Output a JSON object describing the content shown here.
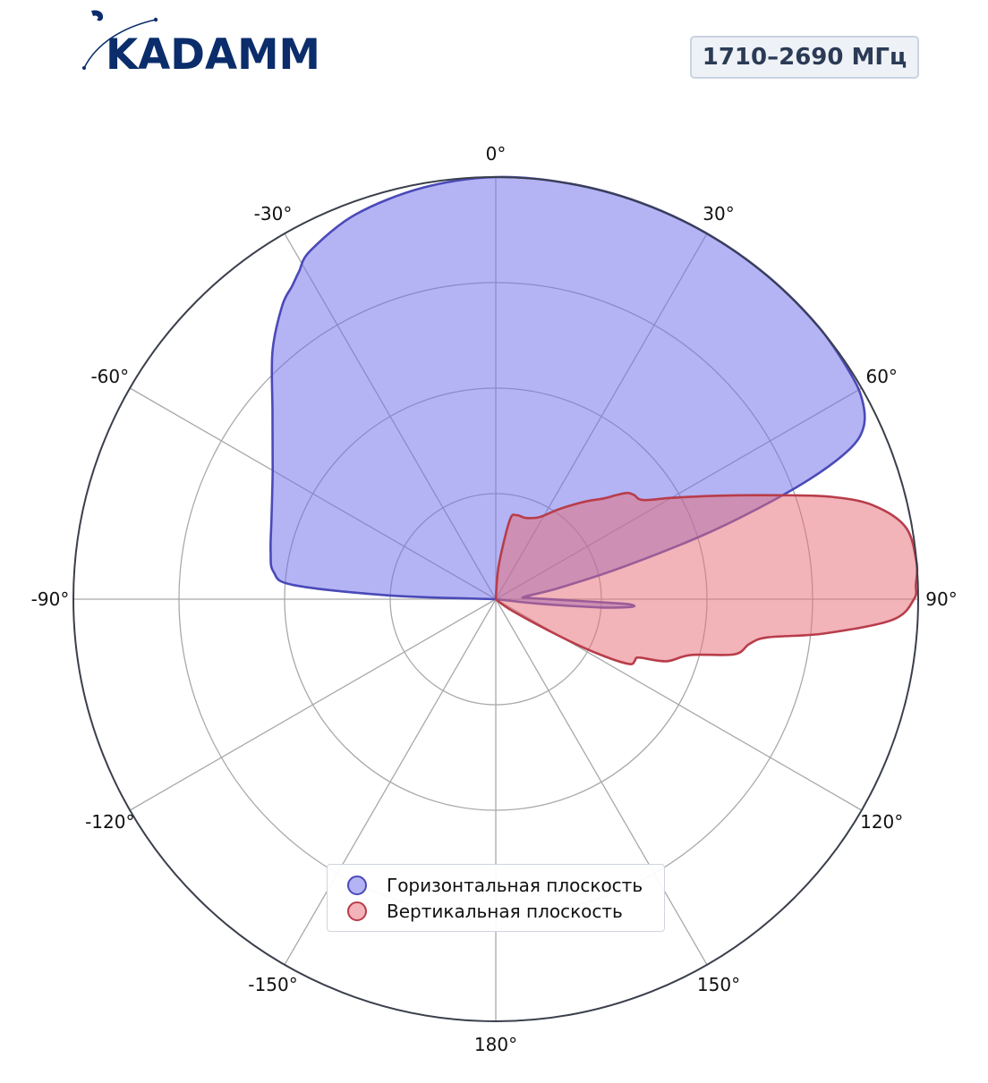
{
  "logo": {
    "text": "KADAMM",
    "color": "#0b2d6b"
  },
  "badge": {
    "text": "1710–2690 МГц"
  },
  "chart_data": {
    "type": "polar-area",
    "angle_unit": "degrees",
    "angle_direction": "clockwise",
    "zero_location": "top",
    "grid": true,
    "radial_range": [
      0,
      1
    ],
    "radial_gridlines": [
      0.25,
      0.5,
      0.75
    ],
    "angle_ticks": [
      0,
      30,
      60,
      90,
      120,
      150,
      180,
      -150,
      -120,
      -90,
      -60,
      -30
    ],
    "angle_tick_labels": [
      "0°",
      "30°",
      "60°",
      "90°",
      "120°",
      "150°",
      "180°",
      "-150°",
      "-120°",
      "-90°",
      "-60°",
      "-30°"
    ],
    "legend_position": "bottom-center",
    "series": [
      {
        "name": "Горизонтальная плоскость",
        "color": "#4a4ab8",
        "fill": "rgba(112,112,235,0.52)",
        "points": [
          {
            "angle": -90,
            "r": 0
          },
          {
            "angle": -88,
            "r": 0.25
          },
          {
            "angle": -86,
            "r": 0.48
          },
          {
            "angle": -83,
            "r": 0.53
          },
          {
            "angle": -78,
            "r": 0.545
          },
          {
            "angle": -70,
            "r": 0.565
          },
          {
            "angle": -60,
            "r": 0.61
          },
          {
            "angle": -50,
            "r": 0.69
          },
          {
            "angle": -42,
            "r": 0.79
          },
          {
            "angle": -36,
            "r": 0.86
          },
          {
            "angle": -33,
            "r": 0.885
          },
          {
            "angle": -31,
            "r": 0.905
          },
          {
            "angle": -28,
            "r": 0.935
          },
          {
            "angle": -20,
            "r": 0.97
          },
          {
            "angle": -10,
            "r": 0.99
          },
          {
            "angle": 0,
            "r": 1.0
          },
          {
            "angle": 10,
            "r": 1.0
          },
          {
            "angle": 20,
            "r": 1.0
          },
          {
            "angle": 30,
            "r": 1.0
          },
          {
            "angle": 40,
            "r": 1.0
          },
          {
            "angle": 50,
            "r": 1.0
          },
          {
            "angle": 58,
            "r": 0.995
          },
          {
            "angle": 62,
            "r": 0.985
          },
          {
            "angle": 65,
            "r": 0.96
          },
          {
            "angle": 67,
            "r": 0.91
          },
          {
            "angle": 69,
            "r": 0.8
          },
          {
            "angle": 71,
            "r": 0.65
          },
          {
            "angle": 73,
            "r": 0.5
          },
          {
            "angle": 76,
            "r": 0.3
          },
          {
            "angle": 80,
            "r": 0.15
          },
          {
            "angle": 85,
            "r": 0.07
          },
          {
            "angle": 88,
            "r": 0.08
          },
          {
            "angle": 91,
            "r": 0.18
          },
          {
            "angle": 92,
            "r": 0.3
          },
          {
            "angle": 92.5,
            "r": 0.325
          },
          {
            "angle": 93.3,
            "r": 0.32
          },
          {
            "angle": 94.5,
            "r": 0.25
          },
          {
            "angle": 96,
            "r": 0.1
          },
          {
            "angle": 100,
            "r": 0
          }
        ]
      },
      {
        "name": "Вертикальная плоскость",
        "color": "#b83d4a",
        "fill": "rgba(230,110,120,0.52)",
        "points": [
          {
            "angle": 0,
            "r": 0
          },
          {
            "angle": 5,
            "r": 0.08
          },
          {
            "angle": 10,
            "r": 0.19
          },
          {
            "angle": 14,
            "r": 0.205
          },
          {
            "angle": 20,
            "r": 0.205
          },
          {
            "angle": 28,
            "r": 0.22
          },
          {
            "angle": 35,
            "r": 0.26
          },
          {
            "angle": 42,
            "r": 0.31
          },
          {
            "angle": 47,
            "r": 0.35
          },
          {
            "angle": 49,
            "r": 0.375
          },
          {
            "angle": 51,
            "r": 0.4
          },
          {
            "angle": 53,
            "r": 0.41
          },
          {
            "angle": 56,
            "r": 0.42
          },
          {
            "angle": 60,
            "r": 0.48
          },
          {
            "angle": 65,
            "r": 0.58
          },
          {
            "angle": 70,
            "r": 0.72
          },
          {
            "angle": 73,
            "r": 0.83
          },
          {
            "angle": 76,
            "r": 0.92
          },
          {
            "angle": 80,
            "r": 0.985
          },
          {
            "angle": 85,
            "r": 1.0
          },
          {
            "angle": 88,
            "r": 0.995
          },
          {
            "angle": 90,
            "r": 0.99
          },
          {
            "angle": 93,
            "r": 0.94
          },
          {
            "angle": 96,
            "r": 0.78
          },
          {
            "angle": 98,
            "r": 0.65
          },
          {
            "angle": 100,
            "r": 0.61
          },
          {
            "angle": 103,
            "r": 0.58
          },
          {
            "angle": 106,
            "r": 0.48
          },
          {
            "angle": 110,
            "r": 0.43
          },
          {
            "angle": 112,
            "r": 0.37
          },
          {
            "angle": 113,
            "r": 0.36
          },
          {
            "angle": 114,
            "r": 0.36
          },
          {
            "angle": 116,
            "r": 0.35
          },
          {
            "angle": 118,
            "r": 0.28
          },
          {
            "angle": 120,
            "r": 0.18
          },
          {
            "angle": 125,
            "r": 0.05
          },
          {
            "angle": 130,
            "r": 0
          }
        ]
      }
    ]
  }
}
